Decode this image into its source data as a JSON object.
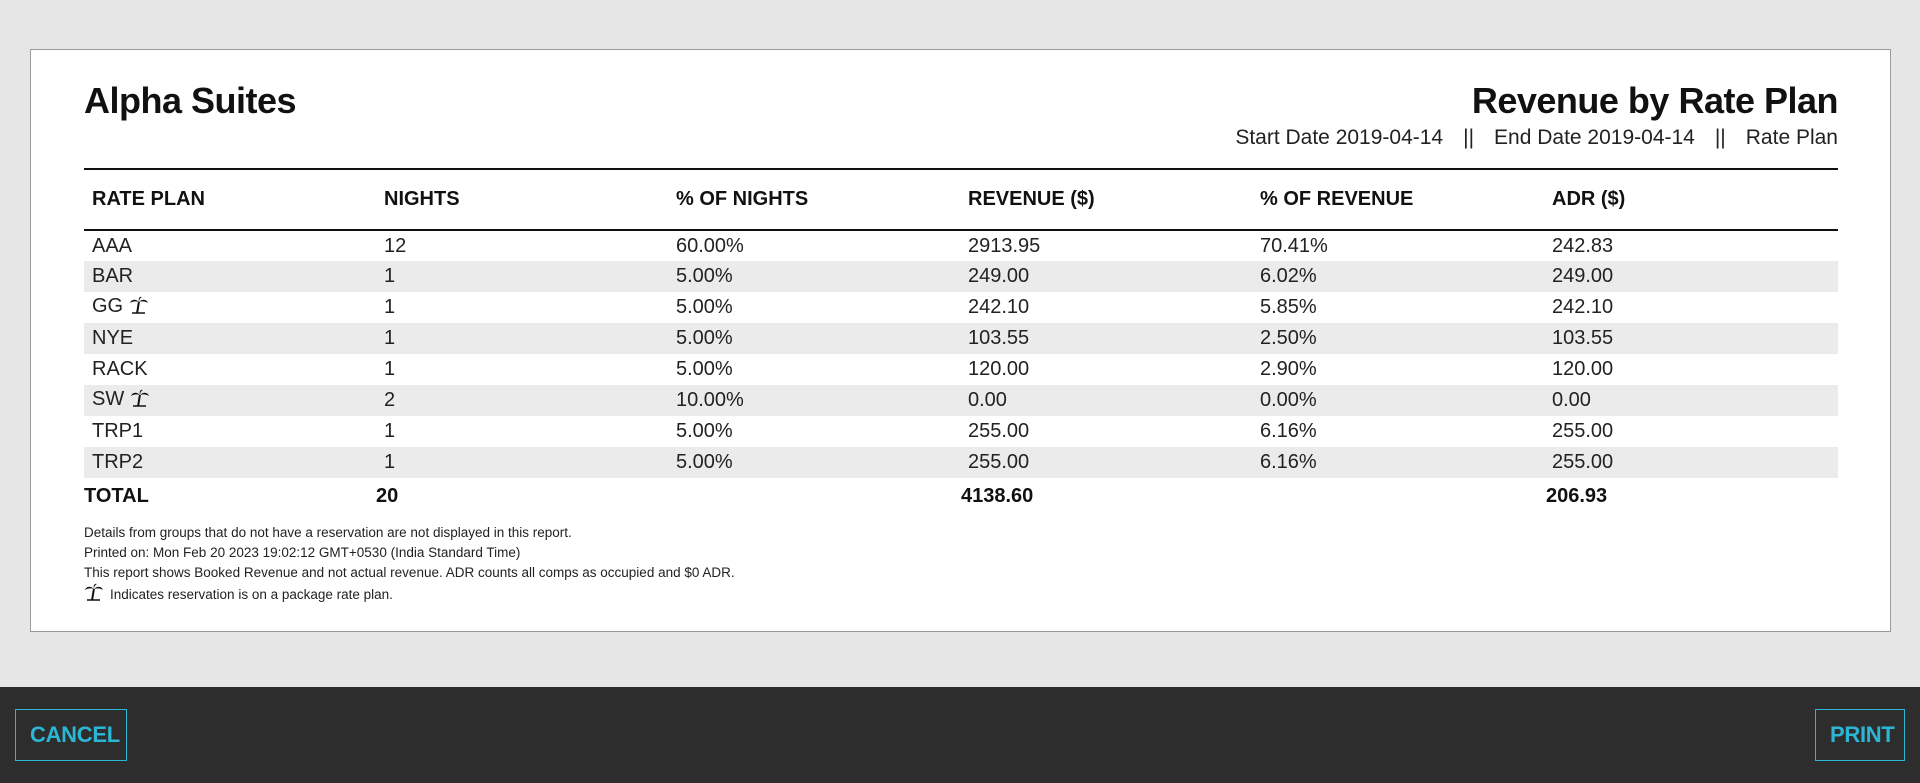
{
  "report": {
    "hotel_name": "Alpha Suites",
    "title": "Revenue by Rate Plan",
    "meta": {
      "start_date": "Start Date 2019-04-14",
      "separator": "||",
      "end_date": "End Date 2019-04-14",
      "group_by": "Rate Plan"
    },
    "columns": [
      "RATE PLAN",
      "NIGHTS",
      "% OF NIGHTS",
      "REVENUE ($)",
      "% OF REVENUE",
      "ADR ($)"
    ],
    "rows": [
      {
        "plan": "AAA",
        "package": false,
        "nights": "12",
        "pct_nights": "60.00%",
        "revenue": "2913.95",
        "pct_revenue": "70.41%",
        "adr": "242.83"
      },
      {
        "plan": "BAR",
        "package": false,
        "nights": "1",
        "pct_nights": "5.00%",
        "revenue": "249.00",
        "pct_revenue": "6.02%",
        "adr": "249.00"
      },
      {
        "plan": "GG",
        "package": true,
        "nights": "1",
        "pct_nights": "5.00%",
        "revenue": "242.10",
        "pct_revenue": "5.85%",
        "adr": "242.10"
      },
      {
        "plan": "NYE",
        "package": false,
        "nights": "1",
        "pct_nights": "5.00%",
        "revenue": "103.55",
        "pct_revenue": "2.50%",
        "adr": "103.55"
      },
      {
        "plan": "RACK",
        "package": false,
        "nights": "1",
        "pct_nights": "5.00%",
        "revenue": "120.00",
        "pct_revenue": "2.90%",
        "adr": "120.00"
      },
      {
        "plan": "SW",
        "package": true,
        "nights": "2",
        "pct_nights": "10.00%",
        "revenue": "0.00",
        "pct_revenue": "0.00%",
        "adr": "0.00"
      },
      {
        "plan": "TRP1",
        "package": false,
        "nights": "1",
        "pct_nights": "5.00%",
        "revenue": "255.00",
        "pct_revenue": "6.16%",
        "adr": "255.00"
      },
      {
        "plan": "TRP2",
        "package": false,
        "nights": "1",
        "pct_nights": "5.00%",
        "revenue": "255.00",
        "pct_revenue": "6.16%",
        "adr": "255.00"
      }
    ],
    "totals": {
      "label": "TOTAL",
      "nights": "20",
      "revenue": "4138.60",
      "adr": "206.93"
    },
    "notes": [
      "Details from groups that do not have a reservation are not displayed in this report.",
      "Printed on: Mon Feb 20 2023 19:02:12 GMT+0530 (India Standard Time)",
      "This report shows Booked Revenue and not actual revenue. ADR counts all comps as occupied and $0 ADR."
    ],
    "package_note": "Indicates reservation is on a package rate plan.",
    "package_icon": "palm-tree-icon"
  },
  "footer": {
    "cancel_label": "CANCEL",
    "print_label": "PRINT",
    "accent_color": "#2bb6d6"
  }
}
